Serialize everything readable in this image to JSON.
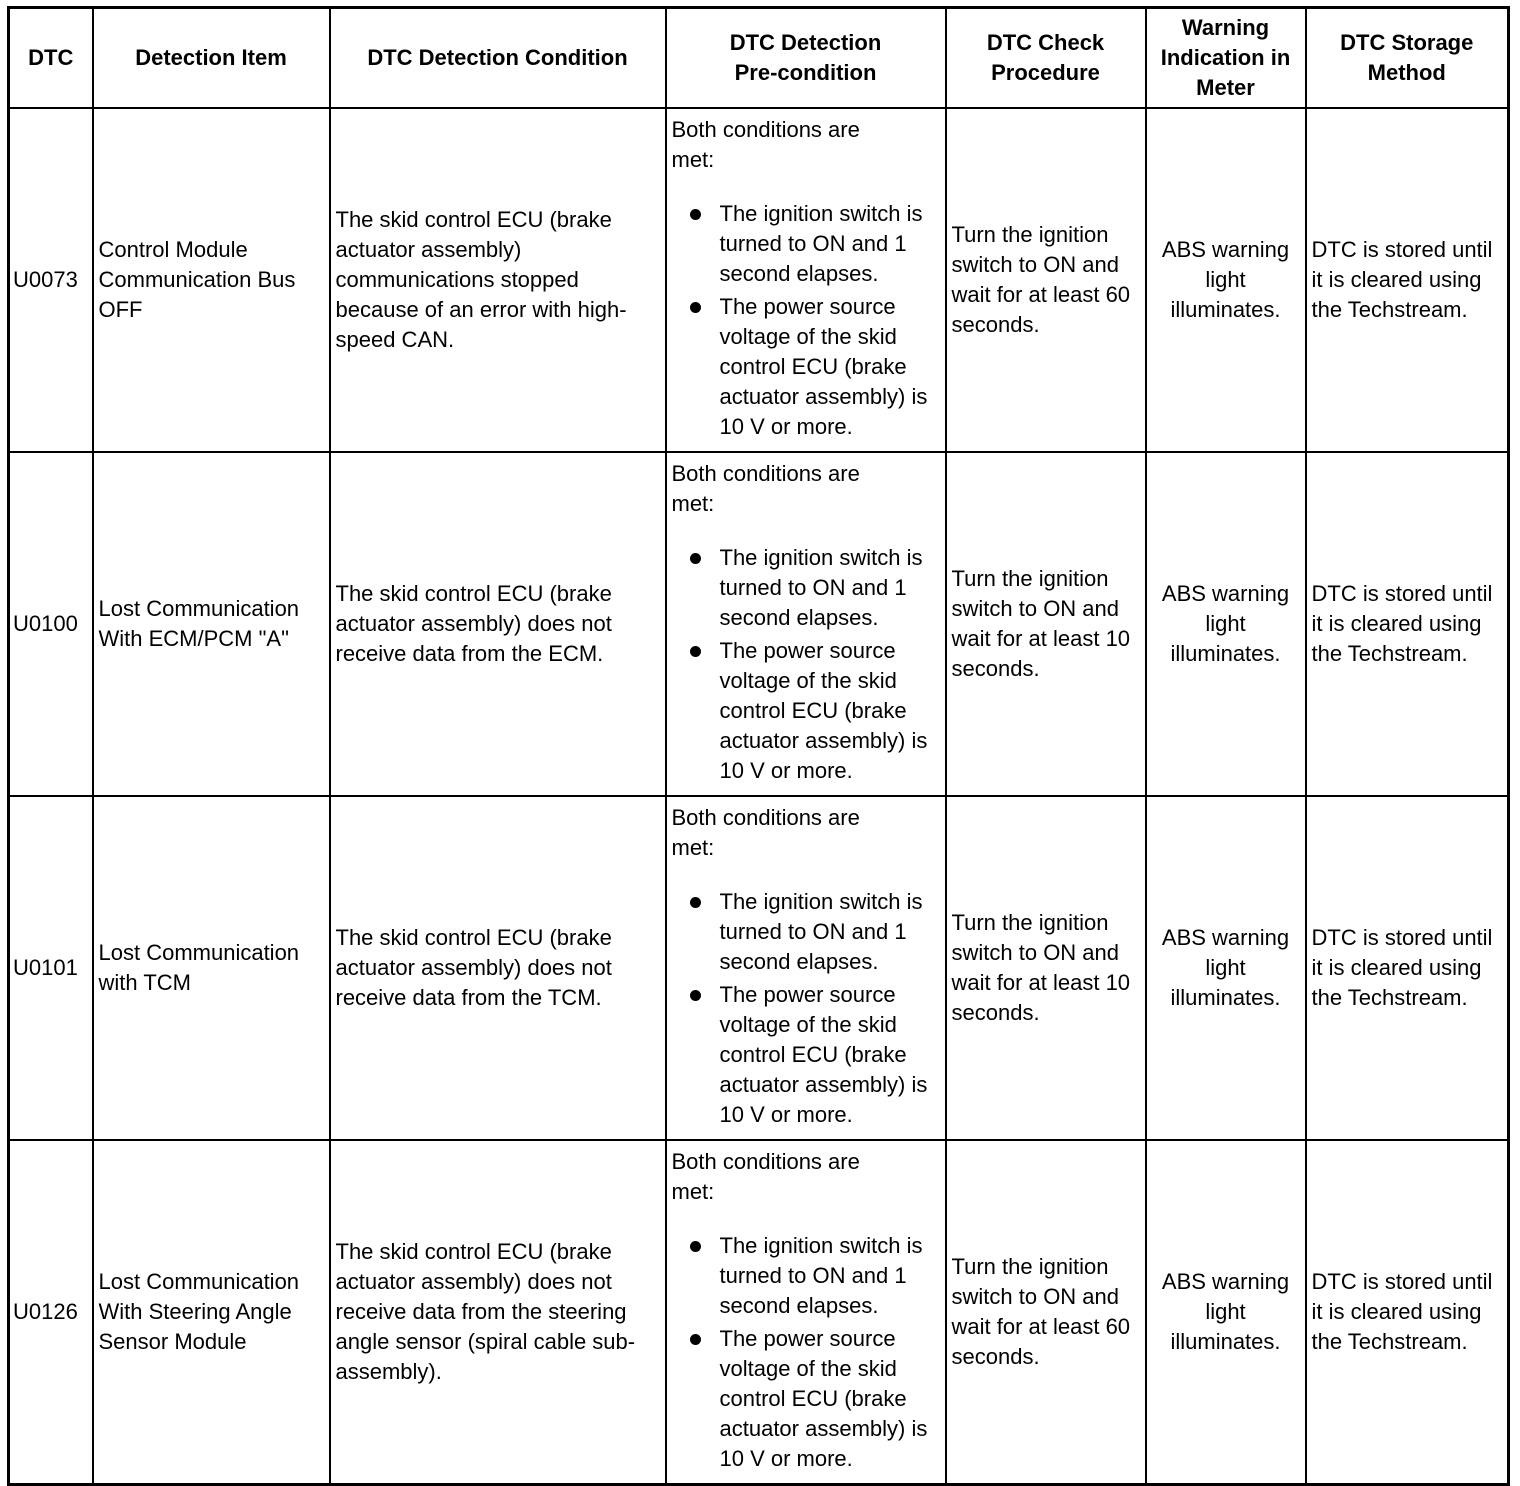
{
  "headers": [
    "DTC",
    "Detection Item",
    "DTC Detection Condition",
    "DTC Detection Pre-condition",
    "DTC Check Procedure",
    "Warning Indication in Meter",
    "DTC Storage Method"
  ],
  "rows": [
    {
      "dtc": "U0073",
      "item": "Control Module Communication Bus OFF",
      "condition": "The skid control ECU (brake actuator assembly) communications stopped because of an error with high-speed CAN.",
      "pre_intro": "Both conditions are met:",
      "pre_bullets": [
        "The ignition switch is turned to ON and 1 second elapses.",
        "The power source voltage of the skid control ECU (brake actuator assembly) is 10 V or more."
      ],
      "procedure": "Turn the ignition switch to ON and wait for at least 60 seconds.",
      "warning": "ABS warning light illuminates.",
      "storage": "DTC is stored until it is cleared using the Techstream."
    },
    {
      "dtc": "U0100",
      "item": "Lost Communication With ECM/PCM \"A\"",
      "condition": "The skid control ECU (brake actuator assembly) does not receive data from the ECM.",
      "pre_intro": "Both conditions are met:",
      "pre_bullets": [
        "The ignition switch is turned to ON and 1 second elapses.",
        "The power source voltage of the skid control ECU (brake actuator assembly) is 10 V or more."
      ],
      "procedure": "Turn the ignition switch to ON and wait for at least 10 seconds.",
      "warning": "ABS warning light illuminates.",
      "storage": "DTC is stored until it is cleared using the Techstream."
    },
    {
      "dtc": "U0101",
      "item": "Lost Communication with TCM",
      "condition": "The skid control ECU (brake actuator assembly) does not receive data from the TCM.",
      "pre_intro": "Both conditions are met:",
      "pre_bullets": [
        "The ignition switch is turned to ON and 1 second elapses.",
        "The power source voltage of the skid control ECU (brake actuator assembly) is 10 V or more."
      ],
      "procedure": "Turn the ignition switch to ON and wait for at least 10 seconds.",
      "warning": "ABS warning light illuminates.",
      "storage": "DTC is stored until it is cleared using the Techstream."
    },
    {
      "dtc": "U0126",
      "item": "Lost Communication With Steering Angle Sensor Module",
      "condition": "The skid control ECU (brake actuator assembly) does not receive data from the steering angle sensor (spiral cable sub-assembly).",
      "pre_intro": "Both conditions are met:",
      "pre_bullets": [
        "The ignition switch is turned to ON and 1 second elapses.",
        "The power source voltage of the skid control ECU (brake actuator assembly) is 10 V or more."
      ],
      "procedure": "Turn the ignition switch to ON and wait for at least 60 seconds.",
      "warning": "ABS warning light illuminates.",
      "storage": "DTC is stored until it is cleared using the Techstream."
    }
  ]
}
